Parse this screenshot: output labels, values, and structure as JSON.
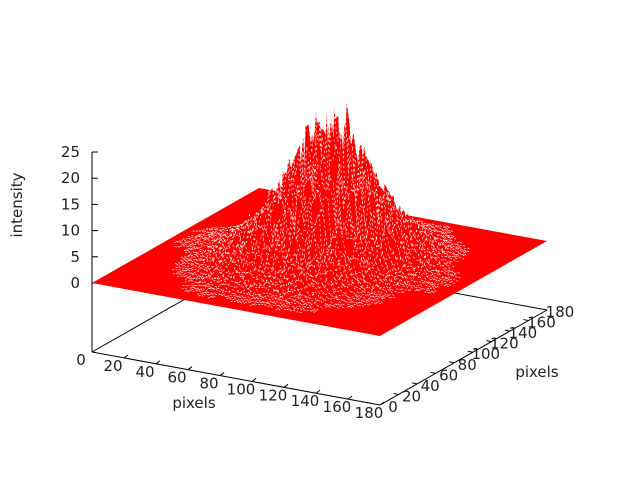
{
  "chart_data": {
    "type": "surface",
    "title": "",
    "xlabel": "pixels",
    "ylabel": "pixels",
    "zlabel": "intensity",
    "xlim": [
      0,
      180
    ],
    "ylim": [
      0,
      180
    ],
    "zlim": [
      0,
      25
    ],
    "x_ticks": [
      "0",
      "20",
      "40",
      "60",
      "80",
      "100",
      "120",
      "140",
      "160",
      "180"
    ],
    "y_ticks": [
      "0",
      "20",
      "40",
      "60",
      "80",
      "100",
      "120",
      "140",
      "160",
      "180"
    ],
    "z_ticks": [
      "0",
      "5",
      "10",
      "15",
      "20",
      "25"
    ],
    "surface_color": "#ff0000",
    "grid_x": [
      0,
      20,
      40,
      60,
      80,
      100,
      120,
      140,
      160,
      180
    ],
    "grid_y": [
      0,
      20,
      40,
      60,
      80,
      100,
      120,
      140,
      160,
      180
    ],
    "z_estimate": [
      [
        0,
        0,
        0,
        0,
        0,
        0,
        0,
        0,
        0,
        0
      ],
      [
        0,
        0,
        0,
        1,
        1,
        1,
        1,
        0,
        0,
        0
      ],
      [
        0,
        0,
        1,
        3,
        4,
        4,
        3,
        1,
        0,
        0
      ],
      [
        0,
        0,
        2,
        6,
        10,
        11,
        7,
        2,
        0,
        0
      ],
      [
        0,
        1,
        3,
        9,
        18,
        20,
        12,
        3,
        1,
        0
      ],
      [
        0,
        1,
        3,
        10,
        22,
        26,
        14,
        4,
        1,
        0
      ],
      [
        0,
        0,
        2,
        7,
        15,
        16,
        9,
        3,
        0,
        0
      ],
      [
        0,
        0,
        1,
        3,
        5,
        6,
        4,
        1,
        0,
        0
      ],
      [
        0,
        0,
        0,
        1,
        1,
        1,
        1,
        0,
        0,
        0
      ],
      [
        0,
        0,
        0,
        0,
        0,
        0,
        0,
        0,
        0,
        0
      ]
    ]
  }
}
